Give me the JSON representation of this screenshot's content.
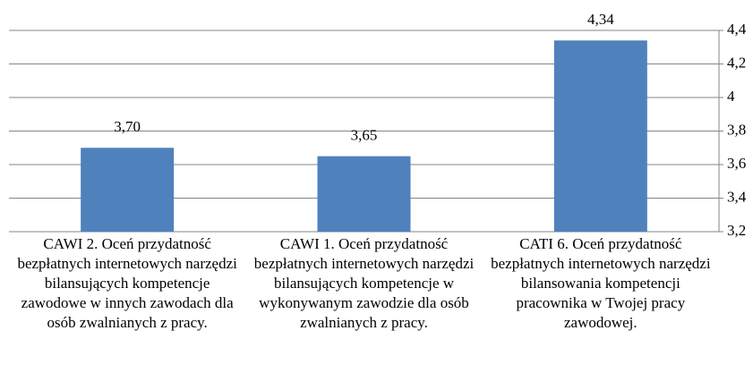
{
  "chart_data": {
    "type": "bar",
    "categories": [
      "CAWI 2. Oceń przydatność bezpłatnych internetowych narzędzi bilansujących kompetencje zawodowe w innych zawodach dla osób zwalnianych z pracy.",
      "CAWI 1. Oceń przydatność bezpłatnych internetowych narzędzi bilansujących kompetencje w wykonywanym zawodzie dla osób zwalnianych z pracy.",
      "CATI 6. Oceń przydatność bezpłatnych internetowych narzędzi bilansowania kompetencji pracownika w Twojej pracy zawodowej."
    ],
    "values": [
      3.7,
      3.65,
      4.34
    ],
    "value_labels": [
      "3,70",
      "3,65",
      "4,34"
    ],
    "color": "#4f81bd",
    "ylim": [
      3.2,
      4.4
    ],
    "yticks": [
      {
        "value": 3.2,
        "label": "3,2"
      },
      {
        "value": 3.4,
        "label": "3,4"
      },
      {
        "value": 3.6,
        "label": "3,6"
      },
      {
        "value": 3.8,
        "label": "3,8"
      },
      4,
      {
        "value": 4.2,
        "label": "4,2"
      },
      {
        "value": 4.4,
        "label": "4,4"
      }
    ],
    "grid": true,
    "y_axis_side": "right"
  }
}
